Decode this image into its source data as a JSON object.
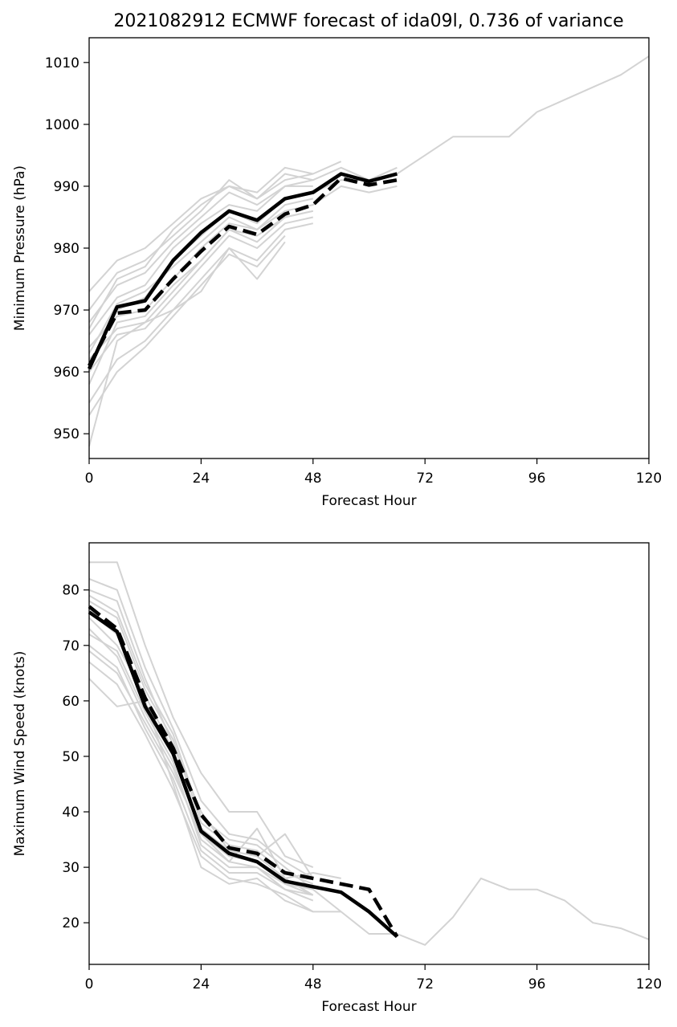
{
  "colors": {
    "ensemble": "#d3d3d3",
    "mean": "#000000",
    "background": "#ffffff"
  },
  "chart_data": [
    {
      "type": "line",
      "title": "2021082912 ECMWF forecast of ida09l, 0.736 of variance",
      "xlabel": "Forecast Hour",
      "ylabel": "Minimum Pressure (hPa)",
      "xlim": [
        0,
        120
      ],
      "ylim": [
        946,
        1014
      ],
      "xticks": [
        0,
        24,
        48,
        72,
        96,
        120
      ],
      "yticks": [
        950,
        960,
        970,
        980,
        990,
        1000,
        1010
      ],
      "grid": false,
      "legend": "none",
      "series": [
        {
          "style": "solid",
          "role": "mean",
          "x": [
            0,
            6,
            12,
            18,
            24,
            30,
            36,
            42,
            48,
            54,
            60,
            66
          ],
          "y": [
            960.5,
            970.5,
            971.5,
            978,
            982.5,
            986,
            984.5,
            988,
            989,
            992,
            990.8,
            992
          ]
        },
        {
          "style": "dashed",
          "role": "mean",
          "x": [
            0,
            6,
            12,
            18,
            24,
            30,
            36,
            42,
            48,
            54,
            60,
            66
          ],
          "y": [
            961,
            969.5,
            970,
            975,
            979.5,
            983.5,
            982.2,
            985.5,
            987,
            991.3,
            990.2,
            991
          ]
        },
        {
          "style": "thin",
          "role": "ensemble",
          "x": [
            0,
            6,
            12,
            18,
            24,
            30,
            36,
            42,
            48,
            54,
            60,
            66,
            72,
            78,
            84,
            90,
            96,
            102,
            108,
            114,
            120
          ],
          "y": [
            961,
            970,
            972,
            978,
            982,
            986,
            984,
            988,
            989,
            991,
            991,
            992,
            995,
            998,
            998,
            998,
            1002,
            1004,
            1006,
            1008,
            1011
          ]
        },
        {
          "style": "thin",
          "role": "ensemble",
          "x": [
            0,
            6,
            12,
            18,
            24,
            30,
            36,
            42
          ],
          "y": [
            948,
            965,
            968,
            970,
            973,
            980,
            975,
            981
          ]
        },
        {
          "style": "thin",
          "role": "ensemble",
          "x": [
            0,
            6,
            12,
            18,
            24,
            30,
            36,
            42,
            48
          ],
          "y": [
            973,
            978,
            980,
            984,
            988,
            990,
            989,
            993,
            992
          ]
        },
        {
          "style": "thin",
          "role": "ensemble",
          "x": [
            0,
            6,
            12,
            18,
            24,
            30,
            36,
            42,
            48,
            54
          ],
          "y": [
            970,
            976,
            978,
            982,
            986,
            991,
            988,
            991,
            992,
            994
          ]
        },
        {
          "style": "thin",
          "role": "ensemble",
          "x": [
            0,
            6,
            12,
            18,
            24,
            30,
            36,
            42,
            48
          ],
          "y": [
            955,
            962,
            965,
            970,
            975,
            980,
            978,
            983,
            984
          ]
        },
        {
          "style": "thin",
          "role": "ensemble",
          "x": [
            0,
            6,
            12,
            18,
            24,
            30,
            36,
            42,
            48
          ],
          "y": [
            966,
            972,
            974,
            980,
            984,
            987,
            986,
            990,
            990
          ]
        },
        {
          "style": "thin",
          "role": "ensemble",
          "x": [
            0,
            6,
            12,
            18,
            24,
            30,
            36,
            42,
            48
          ],
          "y": [
            958,
            968,
            969,
            974,
            978,
            983,
            981,
            985,
            986
          ]
        },
        {
          "style": "thin",
          "role": "ensemble",
          "x": [
            0,
            6,
            12,
            18,
            24,
            30,
            36,
            42,
            48
          ],
          "y": [
            963,
            971,
            973,
            977,
            981,
            985,
            983,
            987,
            988
          ]
        },
        {
          "style": "thin",
          "role": "ensemble",
          "x": [
            0,
            6,
            12,
            18,
            24,
            30,
            36,
            42,
            48
          ],
          "y": [
            960,
            966,
            967,
            972,
            977,
            982,
            980,
            984,
            985
          ]
        },
        {
          "style": "thin",
          "role": "ensemble",
          "x": [
            0,
            6,
            12,
            18,
            24,
            30,
            36,
            42,
            48,
            54,
            60,
            66
          ],
          "y": [
            968,
            974,
            976,
            981,
            985,
            989,
            987,
            990,
            991,
            993,
            991,
            993
          ]
        },
        {
          "style": "thin",
          "role": "ensemble",
          "x": [
            0,
            6,
            12,
            18,
            24,
            30,
            36,
            42
          ],
          "y": [
            953,
            960,
            964,
            969,
            974,
            979,
            977,
            982
          ]
        },
        {
          "style": "thin",
          "role": "ensemble",
          "x": [
            0,
            6,
            12,
            18,
            24,
            30,
            36,
            42,
            48,
            54,
            60,
            66
          ],
          "y": [
            964,
            969,
            970,
            975,
            980,
            984,
            983,
            986,
            987,
            990,
            989,
            990
          ]
        },
        {
          "style": "thin",
          "role": "ensemble",
          "x": [
            0,
            6,
            12,
            18,
            24,
            30,
            36,
            42,
            48
          ],
          "y": [
            967,
            975,
            977,
            983,
            987,
            990,
            988,
            992,
            991
          ]
        },
        {
          "style": "thin",
          "role": "ensemble",
          "x": [
            0,
            6,
            12,
            18,
            24,
            30,
            36,
            42,
            48
          ],
          "y": [
            962,
            967,
            968,
            973,
            978,
            983,
            982,
            985,
            986
          ]
        }
      ]
    },
    {
      "type": "line",
      "title": "",
      "xlabel": "Forecast Hour",
      "ylabel": "Maximum Wind Speed (knots)",
      "xlim": [
        0,
        120
      ],
      "ylim": [
        12.5,
        88.5
      ],
      "xticks": [
        0,
        24,
        48,
        72,
        96,
        120
      ],
      "yticks": [
        20,
        30,
        40,
        50,
        60,
        70,
        80
      ],
      "grid": false,
      "legend": "none",
      "series": [
        {
          "style": "solid",
          "role": "mean",
          "x": [
            0,
            6,
            12,
            18,
            24,
            30,
            36,
            42,
            48,
            54,
            60,
            66
          ],
          "y": [
            76,
            72.5,
            59,
            50.5,
            36.5,
            32.5,
            31,
            27.5,
            26.5,
            25.5,
            22,
            17.5
          ]
        },
        {
          "style": "dashed",
          "role": "mean",
          "x": [
            0,
            6,
            12,
            18,
            24,
            30,
            36,
            42,
            48,
            54,
            60,
            66
          ],
          "y": [
            77,
            73,
            60.5,
            51.5,
            39.5,
            33.5,
            32.5,
            29,
            28,
            27,
            26,
            17.5
          ]
        },
        {
          "style": "thin",
          "role": "ensemble",
          "x": [
            0,
            6,
            12,
            18,
            24,
            30,
            36,
            42,
            48,
            54,
            60,
            66,
            72,
            78,
            84,
            90,
            96,
            102,
            108,
            114,
            120
          ],
          "y": [
            76,
            72,
            59,
            50,
            36,
            32,
            31,
            27,
            26,
            22,
            18,
            18,
            16,
            21,
            28,
            26,
            26,
            24,
            20,
            19,
            17
          ]
        },
        {
          "style": "thin",
          "role": "ensemble",
          "x": [
            0,
            6,
            12,
            18,
            24,
            30,
            36,
            42,
            48
          ],
          "y": [
            85,
            85,
            70,
            57,
            47,
            40,
            40,
            32,
            30
          ]
        },
        {
          "style": "thin",
          "role": "ensemble",
          "x": [
            0,
            6,
            12,
            18,
            24,
            30,
            36,
            42,
            48
          ],
          "y": [
            64,
            59,
            60,
            45,
            30,
            27,
            28,
            24,
            22
          ]
        },
        {
          "style": "thin",
          "role": "ensemble",
          "x": [
            0,
            6,
            12,
            18,
            24,
            30,
            36,
            42,
            48
          ],
          "y": [
            82,
            80,
            66,
            55,
            42,
            36,
            35,
            31,
            28
          ]
        },
        {
          "style": "thin",
          "role": "ensemble",
          "x": [
            0,
            6,
            12,
            18,
            24,
            30,
            36,
            42,
            48
          ],
          "y": [
            70,
            66,
            55,
            46,
            33,
            29,
            29,
            26,
            24
          ]
        },
        {
          "style": "thin",
          "role": "ensemble",
          "x": [
            0,
            6,
            12,
            18,
            24,
            30,
            36,
            42,
            48
          ],
          "y": [
            78,
            75,
            62,
            53,
            38,
            34,
            33,
            29,
            27
          ]
        },
        {
          "style": "thin",
          "role": "ensemble",
          "x": [
            0,
            6,
            12,
            18,
            24,
            30,
            36,
            42,
            48
          ],
          "y": [
            73,
            68,
            57,
            48,
            35,
            31,
            30,
            27,
            25
          ]
        },
        {
          "style": "thin",
          "role": "ensemble",
          "x": [
            0,
            6,
            12,
            18,
            24,
            30,
            36,
            42,
            48
          ],
          "y": [
            80,
            78,
            64,
            52,
            40,
            33,
            32,
            36,
            28
          ]
        },
        {
          "style": "thin",
          "role": "ensemble",
          "x": [
            0,
            6,
            12,
            18,
            24,
            30,
            36,
            42,
            48,
            54
          ],
          "y": [
            67,
            63,
            54,
            44,
            32,
            28,
            27,
            25,
            22,
            22
          ]
        },
        {
          "style": "thin",
          "role": "ensemble",
          "x": [
            0,
            6,
            12,
            18,
            24,
            30,
            36,
            42,
            48,
            54
          ],
          "y": [
            75,
            70,
            61,
            51,
            37,
            33,
            32,
            28,
            29,
            28
          ]
        },
        {
          "style": "thin",
          "role": "ensemble",
          "x": [
            0,
            6,
            12,
            18,
            24,
            30,
            36,
            42,
            48
          ],
          "y": [
            72,
            69,
            58,
            49,
            34,
            30,
            30,
            26,
            25
          ]
        },
        {
          "style": "thin",
          "role": "ensemble",
          "x": [
            0,
            6,
            12,
            18,
            24,
            30,
            36,
            42,
            48
          ],
          "y": [
            79,
            76,
            63,
            54,
            39,
            35,
            34,
            30,
            26
          ]
        },
        {
          "style": "thin",
          "role": "ensemble",
          "x": [
            0,
            6,
            12,
            18,
            24,
            30,
            36,
            42,
            48
          ],
          "y": [
            69,
            65,
            56,
            47,
            36,
            31,
            37,
            28,
            25
          ]
        }
      ]
    }
  ]
}
